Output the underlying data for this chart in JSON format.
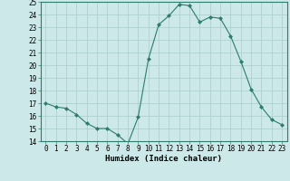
{
  "x": [
    0,
    1,
    2,
    3,
    4,
    5,
    6,
    7,
    8,
    9,
    10,
    11,
    12,
    13,
    14,
    15,
    16,
    17,
    18,
    19,
    20,
    21,
    22,
    23
  ],
  "y": [
    17.0,
    16.7,
    16.6,
    16.1,
    15.4,
    15.0,
    15.0,
    14.5,
    13.8,
    15.9,
    20.5,
    23.2,
    23.9,
    24.8,
    24.7,
    23.4,
    23.8,
    23.7,
    22.3,
    20.3,
    18.1,
    16.7,
    15.7,
    15.3
  ],
  "line_color": "#2d7c6e",
  "bg_color": "#cce8e8",
  "grid_color": "#aacccc",
  "xlabel": "Humidex (Indice chaleur)",
  "xlim": [
    -0.5,
    23.5
  ],
  "ylim": [
    14,
    25
  ],
  "yticks": [
    14,
    15,
    16,
    17,
    18,
    19,
    20,
    21,
    22,
    23,
    24,
    25
  ],
  "xticks": [
    0,
    1,
    2,
    3,
    4,
    5,
    6,
    7,
    8,
    9,
    10,
    11,
    12,
    13,
    14,
    15,
    16,
    17,
    18,
    19,
    20,
    21,
    22,
    23
  ],
  "tick_fontsize": 5.5,
  "xlabel_fontsize": 6.5,
  "marker": "D",
  "marker_size": 2.0,
  "linewidth": 0.8
}
